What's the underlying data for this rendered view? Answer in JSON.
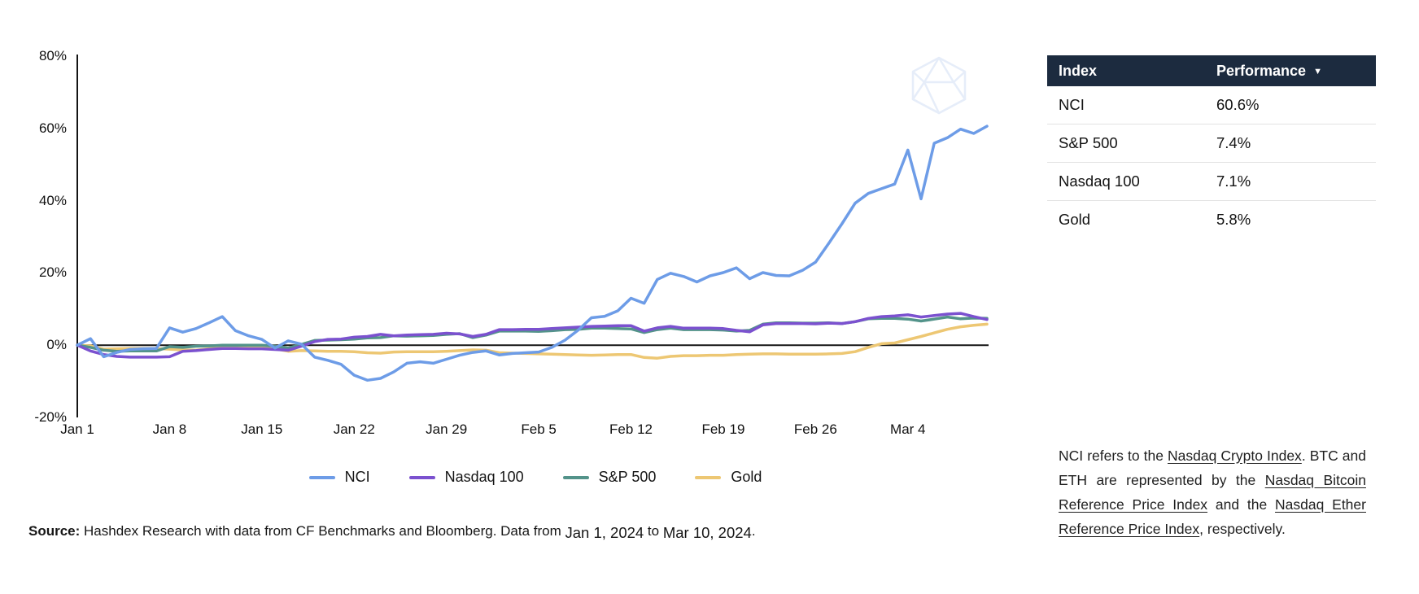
{
  "chart_data": {
    "type": "line",
    "title": "",
    "xlabel": "",
    "ylabel": "",
    "x_unit": "daily, Jan 1 2024 to Mar 10 2024",
    "value_unit": "percent return since Jan 1",
    "grid": "zero-line-only",
    "legend_position": "bottom",
    "ylim": [
      -20,
      80
    ],
    "y_ticks": [
      "80%",
      "60%",
      "40%",
      "20%",
      "0%",
      "-20%"
    ],
    "x_tick_labels": [
      "Jan 1",
      "Jan 8",
      "Jan 15",
      "Jan 22",
      "Jan 29",
      "Feb 5",
      "Feb 12",
      "Feb 19",
      "Feb 26",
      "Mar 4"
    ],
    "x_tick_days": [
      0,
      7,
      14,
      21,
      28,
      35,
      42,
      49,
      56,
      63
    ],
    "series": [
      {
        "name": "NCI",
        "color": "#6d9ce7",
        "final_value": "60.6%",
        "values": [
          0,
          1.8,
          -3.2,
          -2,
          -1.2,
          -1,
          -0.9,
          4.8,
          3.6,
          4.6,
          6.2,
          7.9,
          4,
          2.6,
          1.6,
          -0.8,
          1.2,
          0.3,
          -3.3,
          -4.2,
          -5.3,
          -8.3,
          -9.7,
          -9.2,
          -7.4,
          -5,
          -4.6,
          -5,
          -3.9,
          -2.8,
          -2,
          -1.6,
          -2.7,
          -2.3,
          -2.1,
          -1.9,
          -0.6,
          1.4,
          4.2,
          7.6,
          8,
          9.5,
          13,
          11.6,
          18.2,
          19.9,
          19,
          17.5,
          19.2,
          20.1,
          21.4,
          18.4,
          20.1,
          19.3,
          19.2,
          20.7,
          23,
          28.2,
          33.6,
          39.3,
          42,
          43.3,
          44.6,
          54,
          40.5,
          55.9,
          57.4,
          59.8,
          58.6,
          60.6
        ]
      },
      {
        "name": "Nasdaq 100",
        "color": "#7b51cf",
        "final_value": "7.1%",
        "values": [
          0,
          -1.6,
          -2.6,
          -3.1,
          -3.3,
          -3.3,
          -3.3,
          -3.2,
          -1.7,
          -1.5,
          -1.2,
          -0.9,
          -0.9,
          -1,
          -1,
          -1.2,
          -1.4,
          -0.3,
          1,
          1.6,
          1.7,
          2.2,
          2.4,
          3,
          2.6,
          2.8,
          2.9,
          3,
          3.3,
          3.1,
          2.4,
          3,
          4.3,
          4.3,
          4.4,
          4.4,
          4.6,
          4.8,
          5,
          5.2,
          5.3,
          5.4,
          5.4,
          3.9,
          4.8,
          5.2,
          4.7,
          4.7,
          4.7,
          4.6,
          4.1,
          3.7,
          5.6,
          6,
          6,
          6,
          5.9,
          6.1,
          6,
          6.5,
          7.4,
          7.9,
          8.1,
          8.4,
          7.8,
          8.2,
          8.6,
          8.8,
          7.9,
          7.1
        ]
      },
      {
        "name": "S&P 500",
        "color": "#53938a",
        "final_value": "7.4%",
        "values": [
          0,
          -0.6,
          -1.4,
          -1.7,
          -1.6,
          -1.6,
          -1.6,
          -0.4,
          -0.6,
          -0.3,
          -0.2,
          0,
          0,
          0,
          0,
          -0.3,
          -0.8,
          0.2,
          1.3,
          1.4,
          1.5,
          1.7,
          2,
          2.1,
          2.6,
          2.5,
          2.6,
          2.7,
          3,
          3.2,
          2.1,
          2.8,
          3.9,
          3.9,
          3.9,
          3.8,
          4,
          4.3,
          4.4,
          4.7,
          4.7,
          4.6,
          4.5,
          3.5,
          4.3,
          4.7,
          4.3,
          4.3,
          4.3,
          4.2,
          3.9,
          4.1,
          5.8,
          6.2,
          6.2,
          6.1,
          6.1,
          6.2,
          6,
          6.5,
          7.3,
          7.4,
          7.4,
          7.2,
          6.7,
          7.2,
          7.8,
          7.3,
          7.5,
          7.4
        ]
      },
      {
        "name": "Gold",
        "color": "#edc773",
        "final_value": "5.8%",
        "values": [
          0,
          -0.2,
          -1.1,
          -1,
          -0.9,
          -0.9,
          -0.9,
          -1.1,
          -1.3,
          -1.4,
          -1,
          -0.7,
          -0.5,
          -0.4,
          -0.4,
          -1,
          -1.7,
          -1.5,
          -1.6,
          -1.7,
          -1.7,
          -1.8,
          -2.1,
          -2.2,
          -1.9,
          -1.8,
          -1.8,
          -1.8,
          -1.7,
          -1.5,
          -1.3,
          -1.4,
          -2.1,
          -2.2,
          -2.3,
          -2.4,
          -2.5,
          -2.6,
          -2.7,
          -2.8,
          -2.7,
          -2.6,
          -2.6,
          -3.4,
          -3.6,
          -3.1,
          -2.9,
          -2.9,
          -2.8,
          -2.8,
          -2.6,
          -2.5,
          -2.4,
          -2.4,
          -2.5,
          -2.5,
          -2.5,
          -2.4,
          -2.3,
          -1.8,
          -0.6,
          0.4,
          0.6,
          1.5,
          2.4,
          3.4,
          4.4,
          5.1,
          5.5,
          5.8
        ]
      }
    ]
  },
  "table": {
    "header": {
      "index_label": "Index",
      "performance_label": "Performance",
      "sort_icon": "▼"
    },
    "header_bg": "#1c2b3f",
    "rows": [
      {
        "index": "NCI",
        "performance": "60.6%"
      },
      {
        "index": "S&P 500",
        "performance": "7.4%"
      },
      {
        "index": "Nasdaq 100",
        "performance": "7.1%"
      },
      {
        "index": "Gold",
        "performance": "5.8%"
      }
    ]
  },
  "footnote": {
    "segments": [
      {
        "text": "NCI refers to the ",
        "underline": false
      },
      {
        "text": "Nasdaq Crypto Index",
        "underline": true
      },
      {
        "text": ". BTC and ETH are represented by the ",
        "underline": false
      },
      {
        "text": "Nasdaq Bitcoin Reference Price Index",
        "underline": true
      },
      {
        "text": " and the ",
        "underline": false
      },
      {
        "text": "Nasdaq Ether Reference Price Index",
        "underline": true
      },
      {
        "text": ", respectively.",
        "underline": false
      }
    ]
  },
  "source": {
    "label": "Source:",
    "body": " Hashdex Research with data from CF Benchmarks and Bloomberg. Data from ",
    "date_from": "Jan 1, 2024",
    "connector": " to ",
    "date_to": "Mar 10, 2024",
    "suffix": "."
  }
}
